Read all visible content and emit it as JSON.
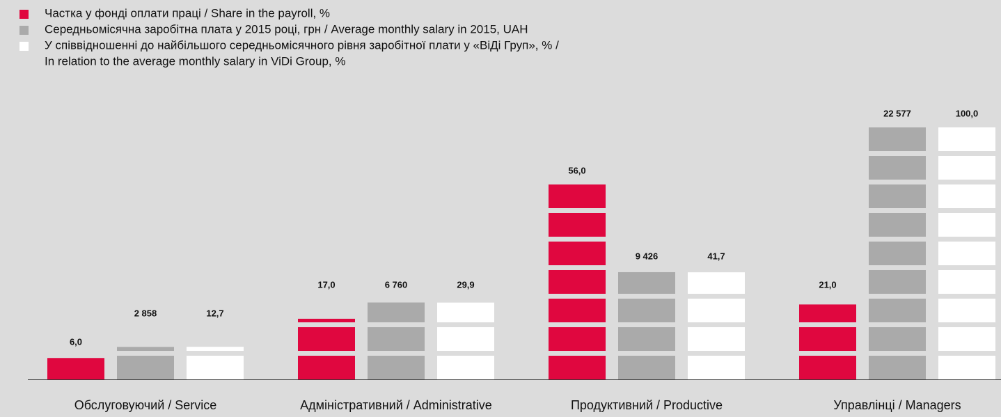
{
  "chart_data": {
    "type": "block_bar",
    "categories": [
      "Обслуговуючий / Service",
      "Адміністративний / Administrative",
      "Продуктивний / Productive",
      "Управлінці / Managers"
    ],
    "series": [
      {
        "name": [
          "Частка у фонді оплати праці / Share in the payroll, %"
        ],
        "color": "#e0073f",
        "values": [
          6.0,
          17.0,
          56.0,
          21.0
        ],
        "value_labels": [
          "6,0",
          "17,0",
          "56,0",
          "21,0"
        ]
      },
      {
        "name": [
          "Середньомісячна заробітна плата у 2015 році, грн / Average monthly salary in 2015, UAH"
        ],
        "color": "#aaaaaa",
        "values": [
          2858,
          6760,
          9426,
          22577
        ],
        "value_labels": [
          "2 858",
          "6 760",
          "9 426",
          "22 577"
        ]
      },
      {
        "name": [
          "У співвідношенні до найбільшого середньомісячного рівня заробітної плати у «ВіДі Груп», % /",
          "In relation to the average monthly salary in ViDi Group, %"
        ],
        "color": "#ffffff",
        "values": [
          12.7,
          29.9,
          41.7,
          100.0
        ],
        "value_labels": [
          "12,7",
          "29,9",
          "41,7",
          "100,0"
        ]
      }
    ]
  }
}
